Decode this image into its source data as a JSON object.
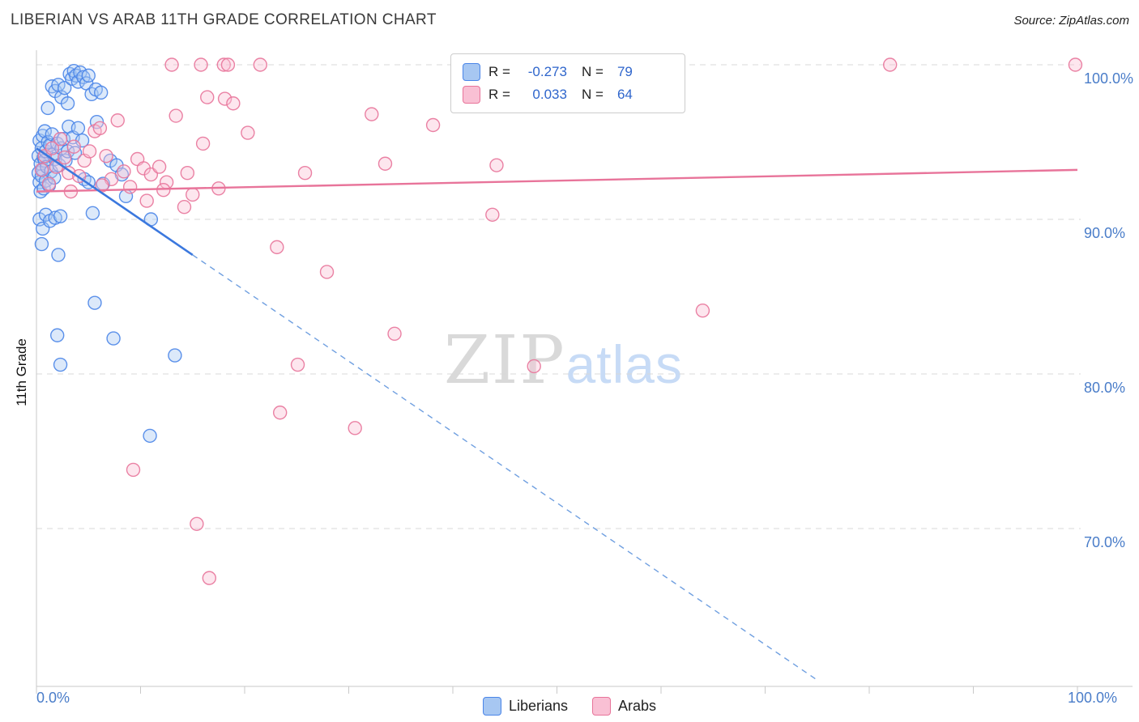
{
  "header": {
    "title": "LIBERIAN VS ARAB 11TH GRADE CORRELATION CHART",
    "source": "Source: ZipAtlas.com"
  },
  "watermark": {
    "zip": "ZIP",
    "atlas": "atlas"
  },
  "axes": {
    "y_label": "11th Grade",
    "y_ticks": [
      "100.0%",
      "90.0%",
      "80.0%",
      "70.0%"
    ],
    "x_tick_left": "0.0%",
    "x_tick_right": "100.0%"
  },
  "legend_box": {
    "rows": [
      {
        "r_label": "R =",
        "r_value": "-0.273",
        "n_label": "N =",
        "n_value": "79"
      },
      {
        "r_label": "R =",
        "r_value": "0.033",
        "n_label": "N =",
        "n_value": "64"
      }
    ]
  },
  "bottom_legend": {
    "items": [
      {
        "label": "Liberians"
      },
      {
        "label": "Arabs"
      }
    ]
  },
  "colors": {
    "blue_stroke": "#4a85e8",
    "blue_fill": "#a7c7f2",
    "pink_stroke": "#e8749a",
    "pink_fill": "#f9c0d4",
    "axis_text": "#4a7dc9",
    "grid": "#d8d8d8"
  },
  "chart_data": {
    "type": "scatter",
    "title": "LIBERIAN VS ARAB 11TH GRADE CORRELATION CHART",
    "xlabel": "",
    "ylabel": "11th Grade",
    "xlim": [
      0,
      100
    ],
    "ylim": [
      59.8,
      101
    ],
    "y_gridlines": [
      100,
      90,
      80,
      70
    ],
    "grid": "dashed-horizontal",
    "legend_position": "top-center",
    "series": [
      {
        "name": "Liberians",
        "R": -0.273,
        "N": 79,
        "stroke": "#4a85e8",
        "fill": "#a7c7f2",
        "points": [
          [
            0.2,
            93.0
          ],
          [
            0.2,
            94.1
          ],
          [
            0.3,
            92.4
          ],
          [
            0.3,
            95.1
          ],
          [
            0.4,
            93.6
          ],
          [
            0.4,
            91.8
          ],
          [
            0.5,
            94.6
          ],
          [
            0.5,
            92.8
          ],
          [
            0.6,
            95.4
          ],
          [
            0.6,
            93.2
          ],
          [
            0.7,
            94.0
          ],
          [
            0.7,
            92.0
          ],
          [
            0.8,
            95.7
          ],
          [
            0.8,
            93.8
          ],
          [
            0.9,
            92.5
          ],
          [
            0.9,
            94.4
          ],
          [
            1.0,
            93.4
          ],
          [
            1.1,
            95.0
          ],
          [
            1.2,
            92.2
          ],
          [
            1.3,
            94.8
          ],
          [
            1.4,
            93.1
          ],
          [
            1.5,
            95.5
          ],
          [
            1.6,
            94.2
          ],
          [
            1.7,
            92.7
          ],
          [
            1.8,
            93.9
          ],
          [
            2.0,
            94.9
          ],
          [
            2.2,
            93.5
          ],
          [
            2.4,
            94.6
          ],
          [
            2.6,
            95.2
          ],
          [
            2.8,
            93.8
          ],
          [
            3.0,
            94.4
          ],
          [
            0.3,
            90.0
          ],
          [
            0.6,
            89.4
          ],
          [
            0.9,
            90.3
          ],
          [
            1.3,
            89.9
          ],
          [
            1.8,
            90.1
          ],
          [
            2.3,
            90.2
          ],
          [
            0.5,
            88.4
          ],
          [
            1.1,
            97.2
          ],
          [
            1.5,
            98.6
          ],
          [
            1.8,
            98.3
          ],
          [
            2.1,
            98.7
          ],
          [
            2.4,
            97.9
          ],
          [
            2.7,
            98.5
          ],
          [
            3.0,
            97.5
          ],
          [
            3.2,
            99.4
          ],
          [
            3.4,
            99.1
          ],
          [
            3.6,
            99.6
          ],
          [
            3.8,
            99.3
          ],
          [
            4.0,
            98.9
          ],
          [
            4.2,
            99.5
          ],
          [
            4.5,
            99.2
          ],
          [
            4.8,
            98.8
          ],
          [
            5.0,
            99.3
          ],
          [
            5.3,
            98.1
          ],
          [
            5.7,
            98.4
          ],
          [
            6.2,
            98.2
          ],
          [
            3.1,
            96.0
          ],
          [
            3.5,
            95.3
          ],
          [
            4.0,
            95.9
          ],
          [
            4.4,
            95.1
          ],
          [
            3.7,
            94.3
          ],
          [
            4.6,
            92.6
          ],
          [
            5.0,
            92.4
          ],
          [
            5.4,
            90.4
          ],
          [
            5.8,
            96.3
          ],
          [
            6.4,
            92.3
          ],
          [
            7.1,
            93.8
          ],
          [
            7.7,
            93.5
          ],
          [
            8.2,
            92.9
          ],
          [
            8.6,
            91.5
          ],
          [
            2.1,
            87.7
          ],
          [
            2.0,
            82.5
          ],
          [
            2.3,
            80.6
          ],
          [
            5.6,
            84.6
          ],
          [
            7.4,
            82.3
          ],
          [
            10.9,
            76.0
          ],
          [
            13.3,
            81.2
          ],
          [
            11.0,
            90.0
          ]
        ],
        "trend_solid": [
          [
            0,
            94.6
          ],
          [
            15,
            87.7
          ]
        ],
        "trend_dashed": [
          [
            15,
            87.7
          ],
          [
            75,
            60.2
          ]
        ]
      },
      {
        "name": "Arabs",
        "R": 0.033,
        "N": 64,
        "stroke": "#e8749a",
        "fill": "#f9c0d4",
        "points": [
          [
            13.0,
            100.0
          ],
          [
            15.8,
            100.0
          ],
          [
            18.0,
            100.0
          ],
          [
            18.4,
            100.0
          ],
          [
            21.5,
            100.0
          ],
          [
            46.8,
            100.0
          ],
          [
            60.5,
            100.0
          ],
          [
            82.0,
            100.0
          ],
          [
            99.8,
            100.0
          ],
          [
            0.5,
            93.2
          ],
          [
            0.8,
            94.1
          ],
          [
            1.2,
            92.3
          ],
          [
            1.5,
            94.6
          ],
          [
            1.9,
            93.4
          ],
          [
            2.3,
            95.2
          ],
          [
            2.7,
            94.0
          ],
          [
            3.1,
            93.0
          ],
          [
            3.6,
            94.7
          ],
          [
            4.1,
            92.8
          ],
          [
            4.6,
            93.8
          ],
          [
            5.1,
            94.4
          ],
          [
            5.6,
            95.7
          ],
          [
            6.1,
            95.9
          ],
          [
            6.7,
            94.1
          ],
          [
            7.2,
            92.6
          ],
          [
            7.8,
            96.4
          ],
          [
            8.4,
            93.1
          ],
          [
            9.0,
            92.1
          ],
          [
            9.7,
            93.9
          ],
          [
            10.3,
            93.3
          ],
          [
            11.0,
            92.9
          ],
          [
            11.8,
            93.4
          ],
          [
            12.5,
            92.4
          ],
          [
            13.4,
            96.7
          ],
          [
            14.2,
            90.8
          ],
          [
            15.0,
            91.6
          ],
          [
            16.0,
            94.9
          ],
          [
            16.4,
            97.9
          ],
          [
            18.1,
            97.8
          ],
          [
            18.9,
            97.5
          ],
          [
            20.3,
            95.6
          ],
          [
            17.5,
            92.0
          ],
          [
            14.5,
            93.0
          ],
          [
            12.2,
            91.9
          ],
          [
            23.1,
            88.2
          ],
          [
            27.9,
            86.6
          ],
          [
            25.8,
            93.0
          ],
          [
            32.2,
            96.8
          ],
          [
            38.1,
            96.1
          ],
          [
            33.5,
            93.6
          ],
          [
            44.2,
            93.5
          ],
          [
            43.8,
            90.3
          ],
          [
            34.4,
            82.6
          ],
          [
            47.8,
            80.5
          ],
          [
            25.1,
            80.6
          ],
          [
            23.4,
            77.5
          ],
          [
            30.6,
            76.5
          ],
          [
            9.3,
            73.8
          ],
          [
            15.4,
            70.3
          ],
          [
            16.6,
            66.8
          ],
          [
            64.0,
            84.1
          ],
          [
            6.3,
            92.2
          ],
          [
            3.3,
            91.8
          ],
          [
            10.6,
            91.2
          ]
        ],
        "trend_solid": [
          [
            0,
            91.8
          ],
          [
            100,
            93.2
          ]
        ],
        "trend_dashed": null
      }
    ]
  }
}
